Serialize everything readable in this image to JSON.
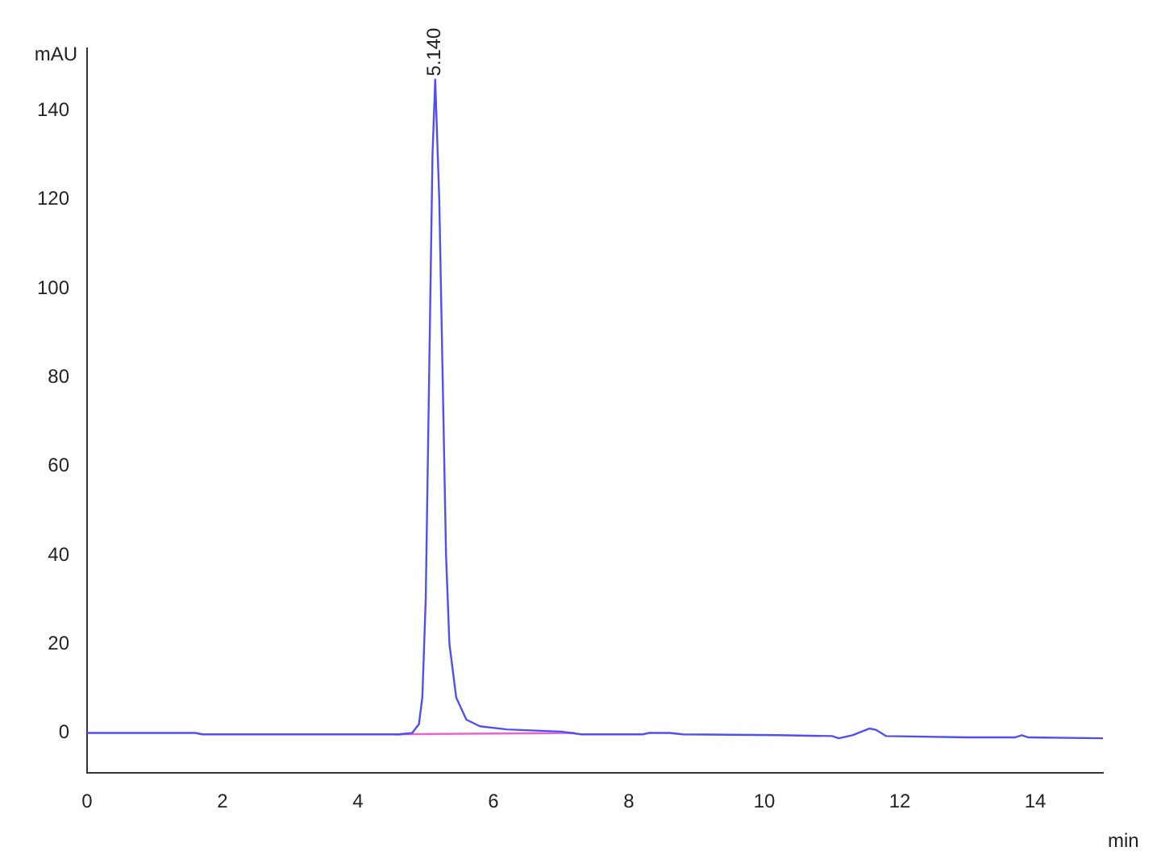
{
  "chart_data": {
    "type": "line",
    "xlabel": "min",
    "ylabel": "mAU",
    "xlim": [
      0,
      15
    ],
    "ylim": [
      -9,
      154
    ],
    "xticks": [
      0,
      2,
      4,
      6,
      8,
      10,
      12,
      14
    ],
    "yticks": [
      0,
      20,
      40,
      60,
      80,
      100,
      120,
      140
    ],
    "grid": false,
    "legend": false,
    "marker": "none",
    "line_style": "solid",
    "annotations": [
      {
        "text": "5.140",
        "x": 5.14,
        "y": 147
      }
    ],
    "series": [
      {
        "color": "#4f4ff5",
        "x": [
          0,
          1.6,
          1.7,
          4.0,
          4.6,
          4.8,
          4.9,
          4.95,
          5.0,
          5.05,
          5.1,
          5.14,
          5.2,
          5.25,
          5.3,
          5.35,
          5.45,
          5.6,
          5.8,
          6.2,
          7.0,
          7.3,
          8.2,
          8.3,
          8.6,
          8.8,
          10.2,
          11.0,
          11.1,
          11.3,
          11.55,
          11.65,
          11.8,
          13.0,
          13.7,
          13.8,
          13.9,
          15
        ],
        "values": [
          0,
          0,
          -0.3,
          -0.3,
          -0.3,
          0,
          2,
          8,
          30,
          80,
          130,
          147,
          120,
          80,
          40,
          20,
          8,
          3,
          1.5,
          0.8,
          0.3,
          -0.3,
          -0.3,
          0,
          0,
          -0.3,
          -0.5,
          -0.7,
          -1.2,
          -0.5,
          1,
          0.7,
          -0.7,
          -1,
          -1,
          -0.5,
          -1,
          -1.2
        ]
      },
      {
        "color": "#f060d0",
        "x": [
          4.55,
          7.2
        ],
        "values": [
          -0.3,
          0
        ]
      }
    ]
  }
}
